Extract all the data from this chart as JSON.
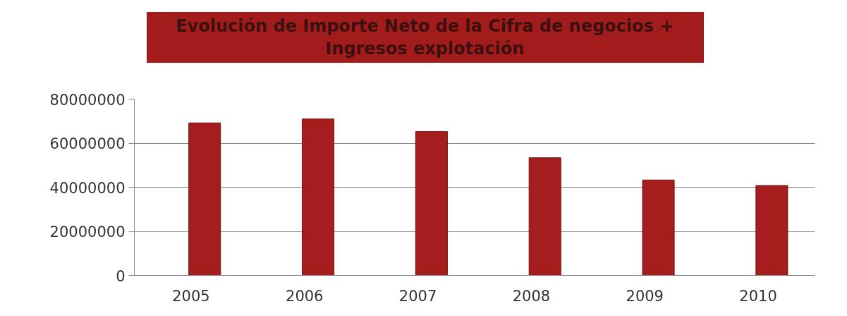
{
  "chart_data": {
    "type": "bar",
    "title": "Evolución de Importe Neto de la Cifra de negocios +\nIngresos explotación",
    "categories": [
      "2005",
      "2006",
      "2007",
      "2008",
      "2009",
      "2010"
    ],
    "series": [
      {
        "color": "#a51d1d",
        "values": [
          69200000,
          71000000,
          65300000,
          53400000,
          43300000,
          40800000
        ]
      }
    ],
    "ylim": [
      0,
      80000000
    ],
    "yticks": [
      0,
      20000000,
      40000000,
      60000000,
      80000000
    ],
    "grid": "y"
  }
}
